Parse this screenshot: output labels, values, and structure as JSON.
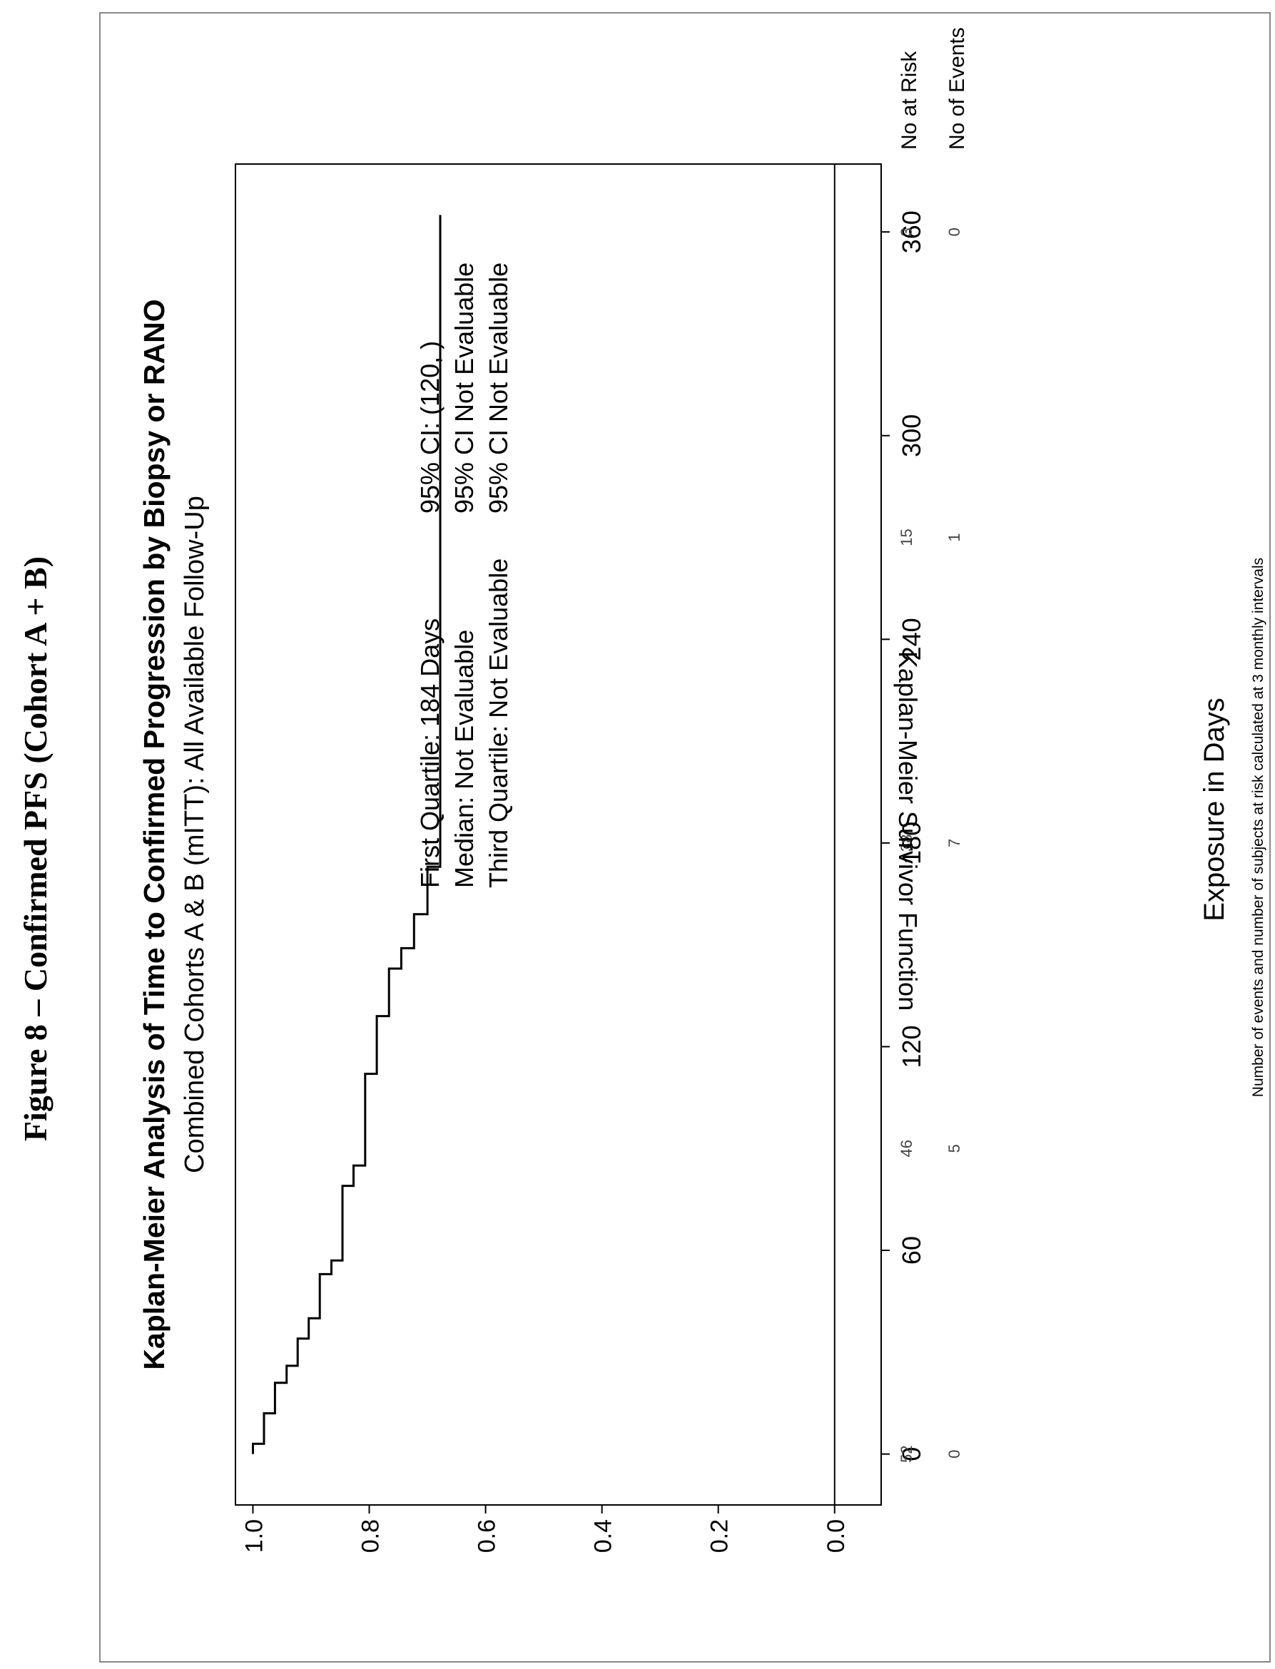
{
  "figure_label": "Figure 8 – Confirmed PFS (Cohort A + B)",
  "chart_data": {
    "type": "line",
    "title": "Kaplan-Meier Analysis of Time to Confirmed Progression by Biopsy or RANO",
    "subtitle": "Combined Cohorts A & B (mITT): All Available Follow-Up",
    "xlabel": "Exposure in Days",
    "ylabel": "Kaplan-Meier Survivor Function",
    "xlim": [
      -15,
      380
    ],
    "ylim": [
      -0.08,
      1.03
    ],
    "x_ticks": [
      0,
      60,
      120,
      180,
      240,
      300,
      360
    ],
    "y_ticks": [
      0.0,
      0.2,
      0.4,
      0.6,
      0.8,
      1.0
    ],
    "y_tick_labels": [
      "0.0",
      "0.2",
      "0.4",
      "0.6",
      "0.8",
      "1.0"
    ],
    "grid": false,
    "series": [
      {
        "x": [
          0,
          3,
          3,
          12,
          12,
          21,
          21,
          26,
          26,
          34,
          34,
          40,
          40,
          53,
          53,
          57,
          57,
          79,
          79,
          85,
          85,
          112,
          112,
          129,
          129,
          143,
          143,
          149,
          149,
          159,
          159,
          173,
          173,
          365
        ],
        "y": [
          1.0,
          1.0,
          0.981,
          0.981,
          0.962,
          0.962,
          0.942,
          0.942,
          0.923,
          0.923,
          0.904,
          0.904,
          0.885,
          0.885,
          0.865,
          0.865,
          0.846,
          0.846,
          0.827,
          0.827,
          0.807,
          0.807,
          0.787,
          0.787,
          0.766,
          0.766,
          0.745,
          0.745,
          0.723,
          0.723,
          0.7,
          0.7,
          0.678,
          0.678
        ]
      }
    ],
    "annotations": [
      {
        "label": "First Quartile: 184 Days",
        "ci": "95% CI: (120, )"
      },
      {
        "label": "Median: Not Evaluable",
        "ci": "95% CI Not Evaluable"
      },
      {
        "label": "Third Quartile: Not Evaluable",
        "ci": "95% CI Not Evaluable"
      }
    ],
    "risk_table": {
      "rows": [
        {
          "label": "No at Risk",
          "values": [
            52,
            46,
            38,
            15,
            3
          ]
        },
        {
          "label": "No of Events",
          "values": [
            0,
            5,
            7,
            1,
            0
          ]
        }
      ],
      "days": [
        0,
        90,
        180,
        270,
        360
      ]
    },
    "footnote": "Number of events and number of subjects at risk calculated at 3 monthly intervals"
  }
}
